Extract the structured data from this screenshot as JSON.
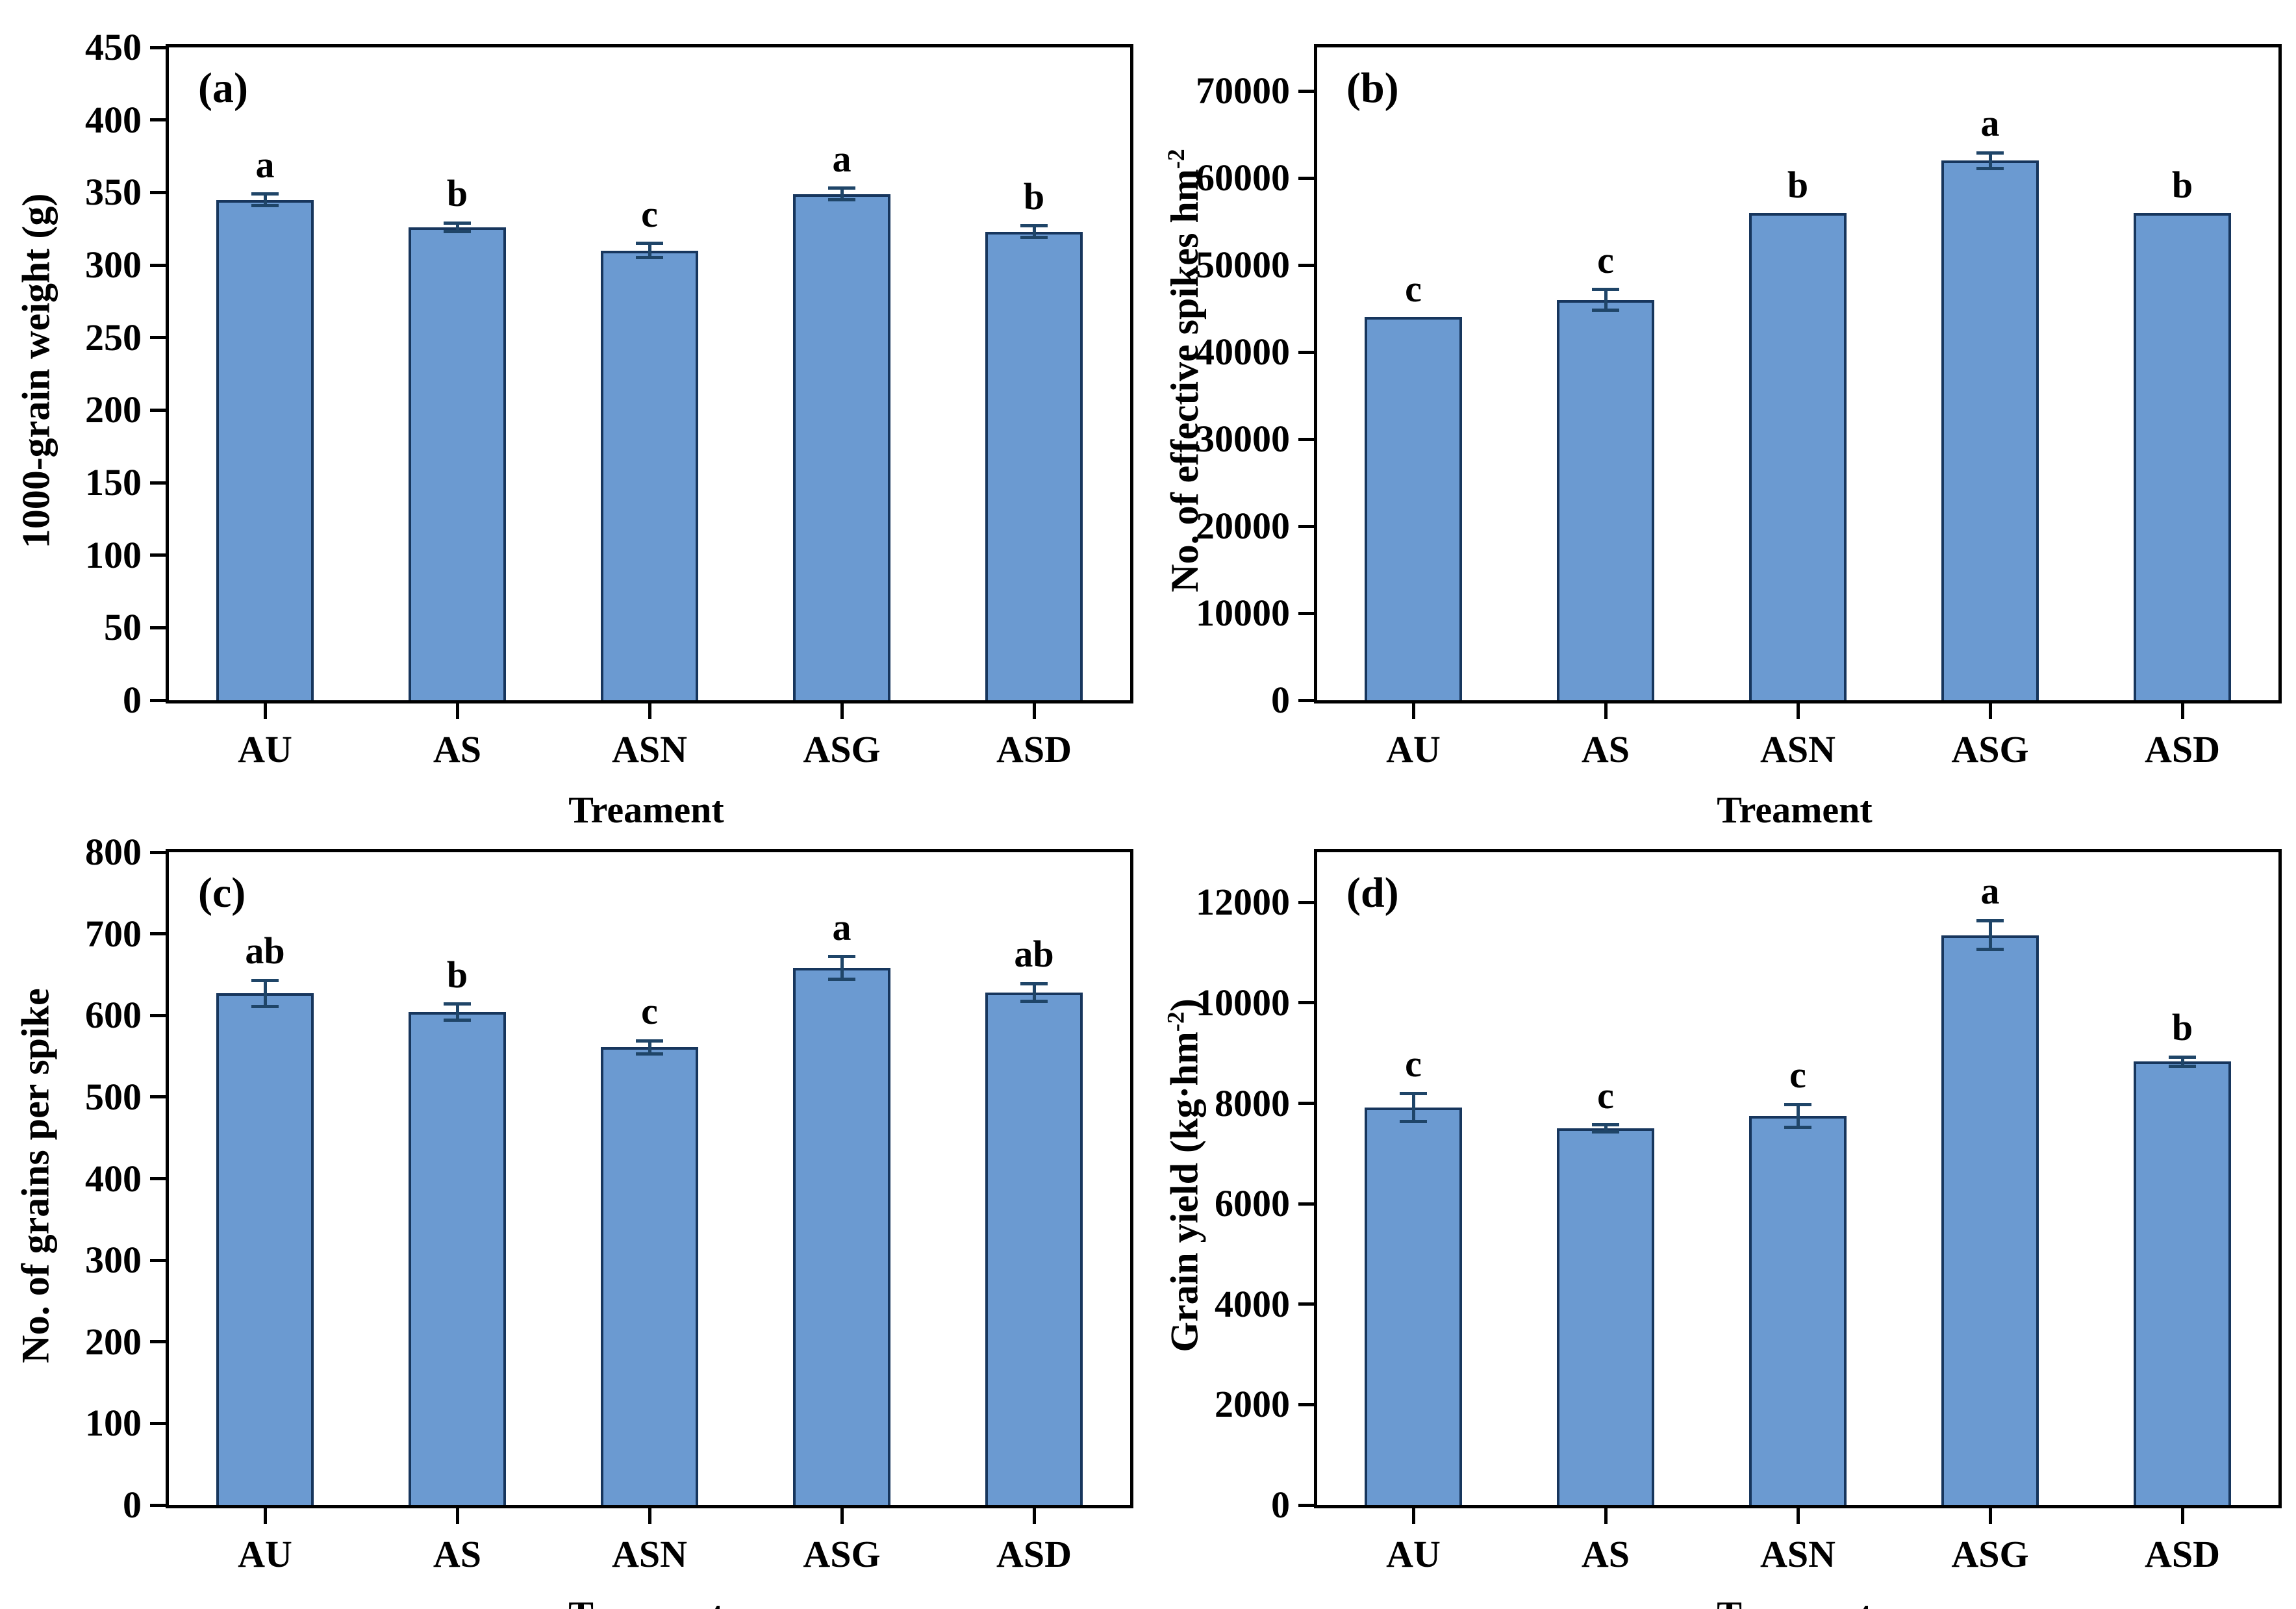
{
  "figure": {
    "bar_fill_color": "#6b9ad1",
    "bar_edge_color": "#17365d",
    "error_bar_color": "#1f4568",
    "axis_color": "#000000",
    "background_color": "#ffffff",
    "x_axis_title": "Treament",
    "categories": [
      "AU",
      "AS",
      "ASN",
      "ASG",
      "ASD"
    ]
  },
  "chart_data": [
    {
      "type": "bar",
      "panel_letter": "(a)",
      "ylabel_parts": [
        {
          "t": "1000-grain weight (g)"
        }
      ],
      "xlabel": "Treament",
      "categories": [
        "AU",
        "AS",
        "ASN",
        "ASG",
        "ASD"
      ],
      "values": [
        345,
        326,
        310,
        349,
        323
      ],
      "errors": [
        4,
        3,
        5,
        4,
        4
      ],
      "sig_letters": [
        "a",
        "b",
        "c",
        "a",
        "b"
      ],
      "ylim": [
        0,
        450
      ],
      "ytick_step": 50,
      "ytick_max": 450,
      "grid": false,
      "legend": "none"
    },
    {
      "type": "bar",
      "panel_letter": "(b)",
      "ylabel_parts": [
        {
          "t": "No. of effective spikes hm"
        },
        {
          "t": "-2",
          "sup": true
        }
      ],
      "xlabel": "Treament",
      "categories": [
        "AU",
        "AS",
        "ASN",
        "ASG",
        "ASD"
      ],
      "values": [
        44000,
        46000,
        56000,
        62000,
        56000
      ],
      "errors": [
        0,
        1200,
        0,
        900,
        0
      ],
      "sig_letters": [
        "c",
        "c",
        "b",
        "a",
        "b"
      ],
      "ylim": [
        0,
        75000
      ],
      "ytick_step": 10000,
      "ytick_max": 70000,
      "grid": false,
      "legend": "none"
    },
    {
      "type": "bar",
      "panel_letter": "(c)",
      "ylabel_parts": [
        {
          "t": "No. of grains per spike"
        }
      ],
      "xlabel": "Treament",
      "categories": [
        "AU",
        "AS",
        "ASN",
        "ASG",
        "ASD"
      ],
      "values": [
        627,
        604,
        561,
        658,
        628
      ],
      "errors": [
        16,
        10,
        8,
        14,
        11
      ],
      "sig_letters": [
        "ab",
        "b",
        "c",
        "a",
        "ab"
      ],
      "ylim": [
        0,
        800
      ],
      "ytick_step": 100,
      "ytick_max": 800,
      "grid": false,
      "legend": "none"
    },
    {
      "type": "bar",
      "panel_letter": "(d)",
      "ylabel_parts": [
        {
          "t": "Grain yield (kg·hm"
        },
        {
          "t": "-2",
          "sup": true
        },
        {
          "t": ")"
        }
      ],
      "xlabel": "Treament",
      "categories": [
        "AU",
        "AS",
        "ASN",
        "ASG",
        "ASD"
      ],
      "values": [
        7920,
        7500,
        7750,
        11350,
        8830
      ],
      "errors": [
        280,
        70,
        230,
        290,
        90
      ],
      "sig_letters": [
        "c",
        "c",
        "c",
        "a",
        "b"
      ],
      "ylim": [
        0,
        13000
      ],
      "ytick_step": 2000,
      "ytick_max": 12000,
      "grid": false,
      "legend": "none"
    }
  ]
}
